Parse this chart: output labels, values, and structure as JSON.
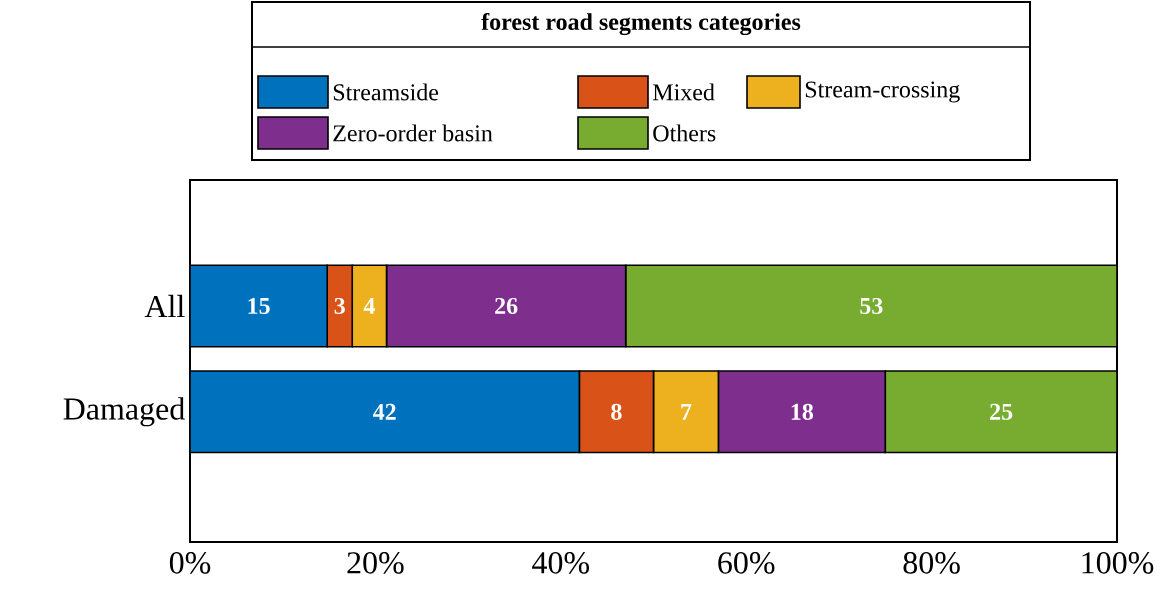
{
  "chart_data": {
    "type": "bar",
    "orientation": "horizontal",
    "stacked": true,
    "legend_title": "forest road segments categories",
    "legend": "top",
    "grid": false,
    "categories": [
      "All",
      "Damaged"
    ],
    "series": [
      {
        "name": "Streamside",
        "color": "#0072bd",
        "values": [
          14.8,
          42
        ],
        "value_labels": [
          "15",
          "42"
        ]
      },
      {
        "name": "Mixed",
        "color": "#d95319",
        "values": [
          2.7,
          8
        ],
        "value_labels": [
          "3",
          "8"
        ]
      },
      {
        "name": "Stream-crossing",
        "color": "#edb120",
        "values": [
          3.7,
          7
        ],
        "value_labels": [
          "4",
          "7"
        ]
      },
      {
        "name": "Zero-order basin",
        "color": "#7e2f8e",
        "values": [
          25.8,
          18
        ],
        "value_labels": [
          "26",
          "18"
        ]
      },
      {
        "name": "Others",
        "color": "#77ac30",
        "values": [
          53.0,
          25
        ],
        "value_labels": [
          "53",
          "25"
        ]
      }
    ],
    "xlim": [
      0,
      100
    ],
    "xticks": [
      {
        "value": 0,
        "label": "0%"
      },
      {
        "value": 20,
        "label": "20%"
      },
      {
        "value": 40,
        "label": "40%"
      },
      {
        "value": 60,
        "label": "60%"
      },
      {
        "value": 80,
        "label": "80%"
      },
      {
        "value": 100,
        "label": "100%"
      }
    ]
  }
}
